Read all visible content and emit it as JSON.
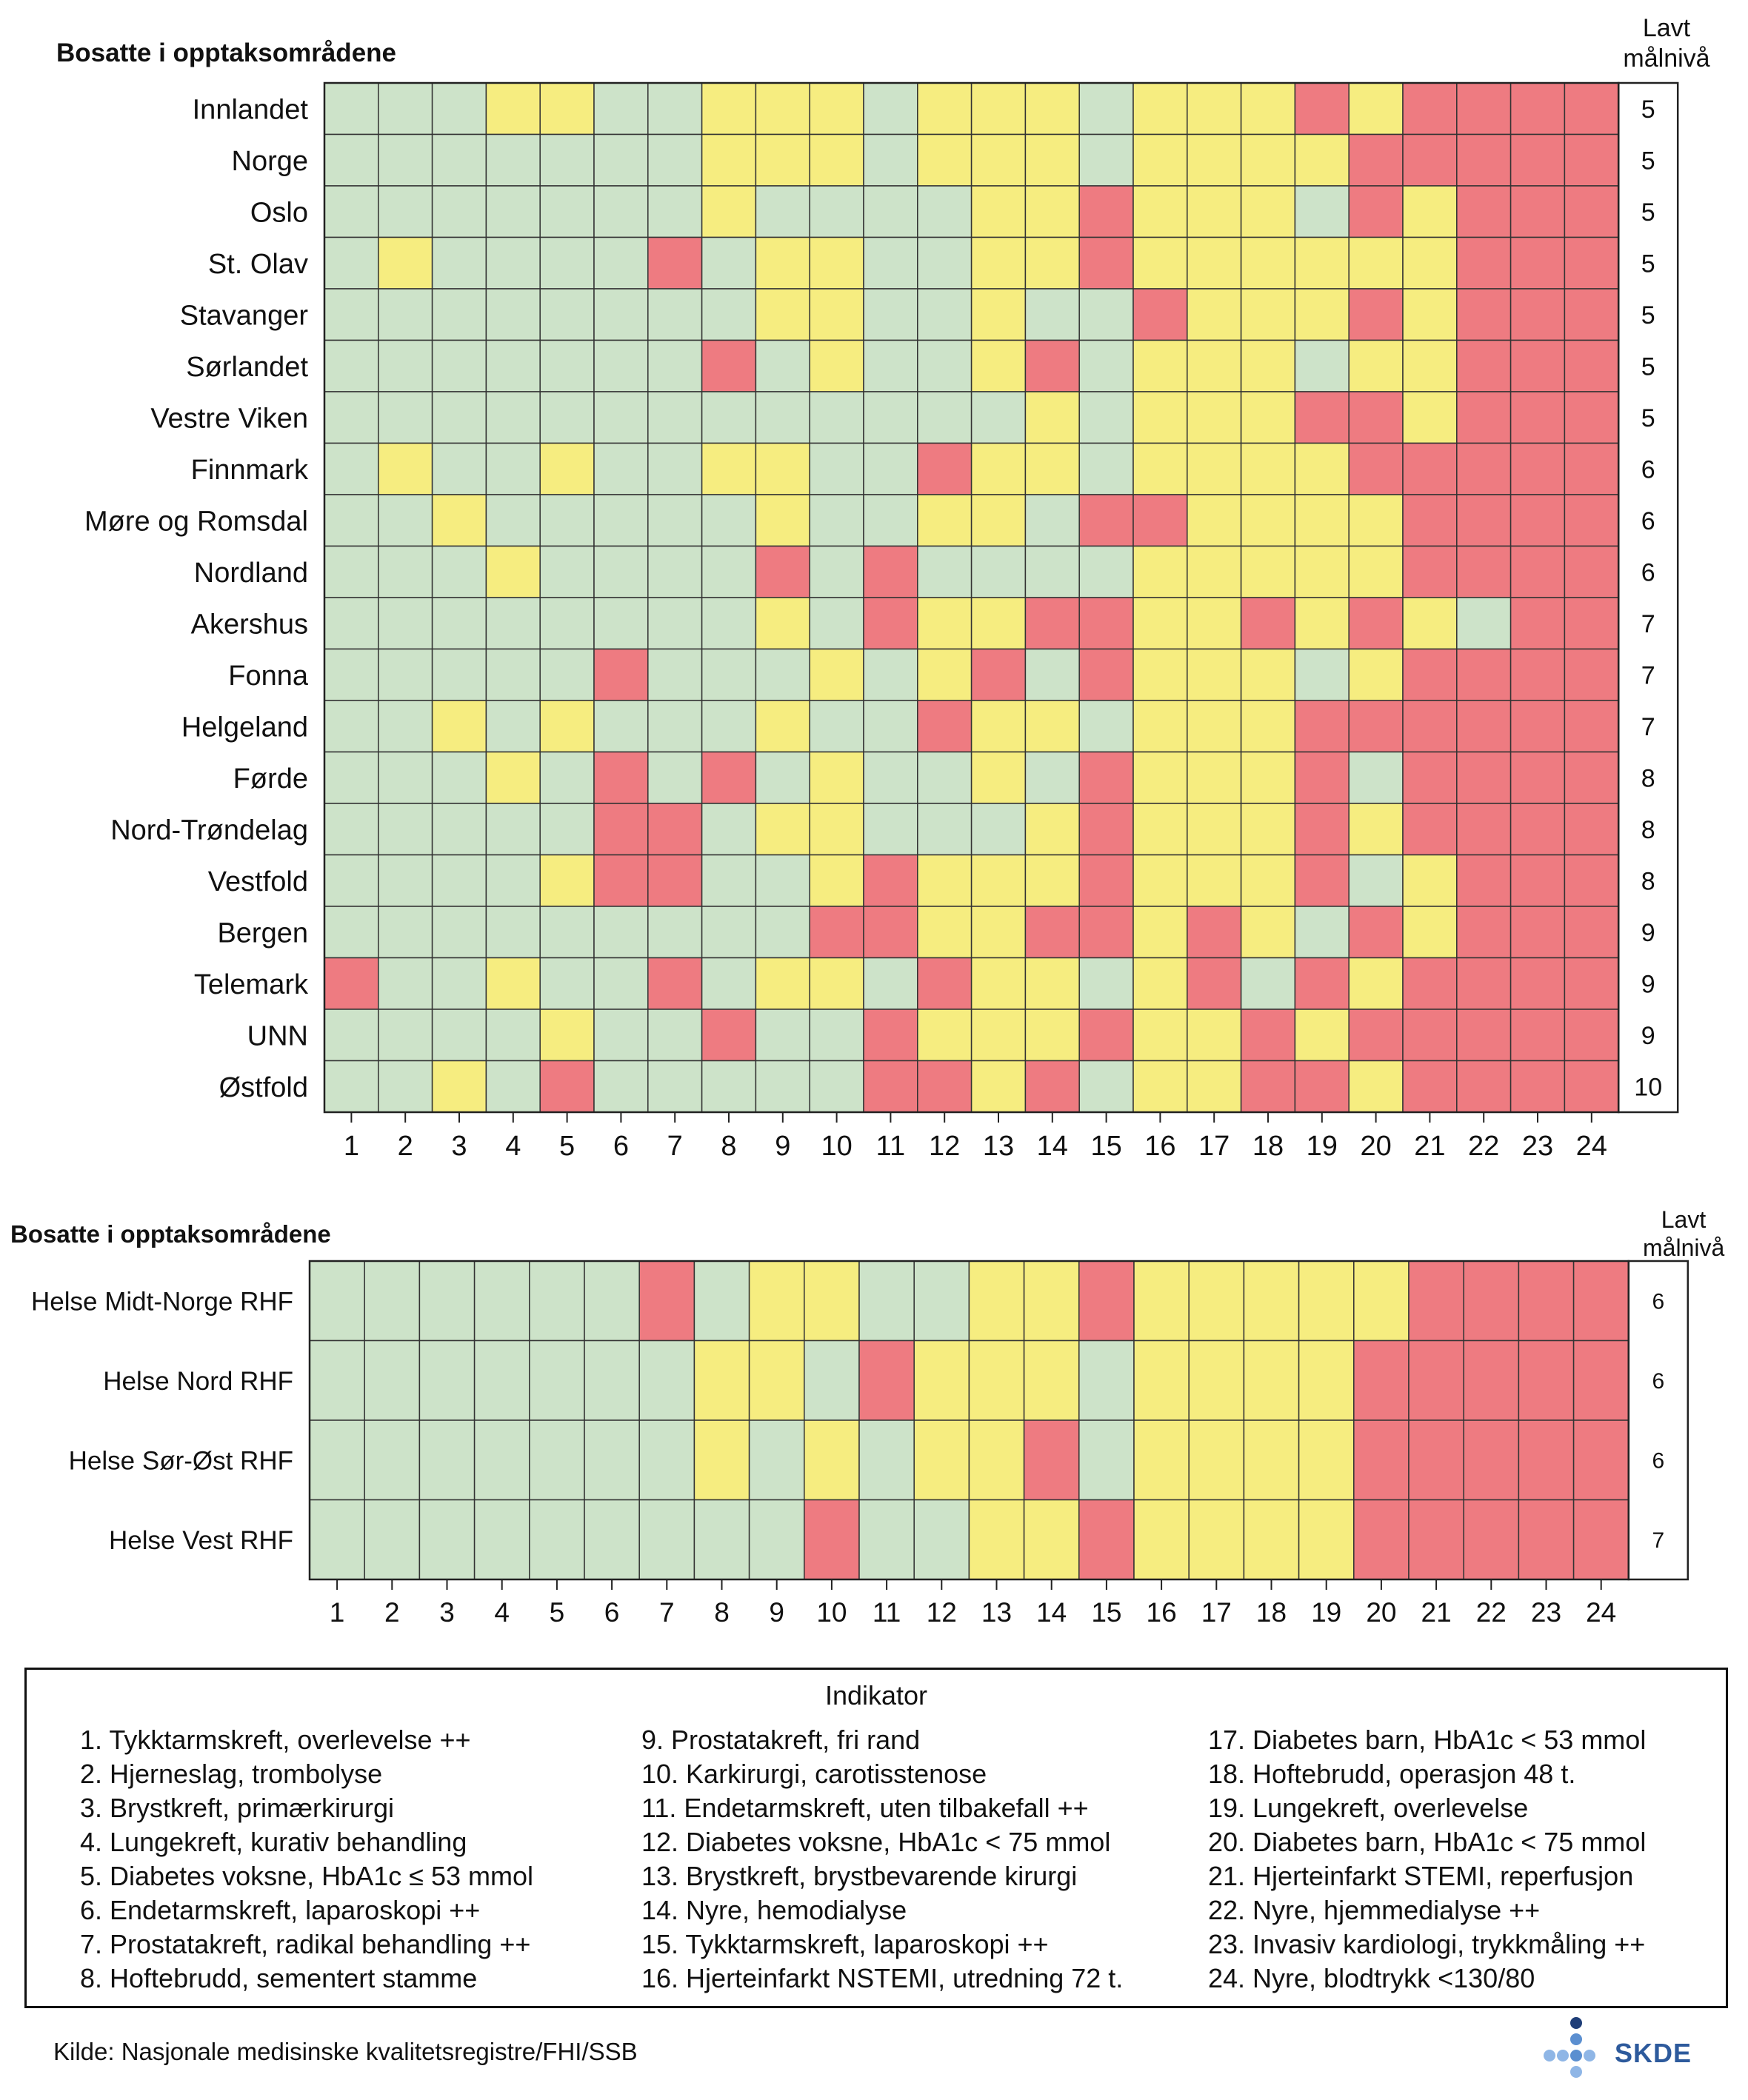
{
  "chart_data": [
    {
      "type": "heatmap",
      "title": "Bosatte i opptaksområdene",
      "right_header": [
        "Lavt",
        "målnivå"
      ],
      "columns": [
        1,
        2,
        3,
        4,
        5,
        6,
        7,
        8,
        9,
        10,
        11,
        12,
        13,
        14,
        15,
        16,
        17,
        18,
        19,
        20,
        21,
        22,
        23,
        24
      ],
      "legend_levels": {
        "G": "#cde3c9",
        "Y": "#f6ed80",
        "R": "#ee7b81"
      },
      "rows": [
        {
          "name": "Innlandet",
          "cells": "GGGYYGGYYYGYYYGYYYRYRRRR",
          "lavt": 5
        },
        {
          "name": "Norge",
          "cells": "GGGGGGGYYYGYYYGYYYYRRRRR",
          "lavt": 5
        },
        {
          "name": "Oslo",
          "cells": "GGGGGGGYGGGGYYRYYYGRYRRR",
          "lavt": 5
        },
        {
          "name": "St. Olav",
          "cells": "GYGGGGRGYYGGYYRYYYYYYRRR",
          "lavt": 5
        },
        {
          "name": "Stavanger",
          "cells": "GGGGGGGGYYGGYGGRYYYRYRRR",
          "lavt": 5
        },
        {
          "name": "Sørlandet",
          "cells": "GGGGGGGRGYGGYRGYYYGYYRRR",
          "lavt": 5
        },
        {
          "name": "Vestre Viken",
          "cells": "GGGGGGGGGGGGGYGYYYRRYRRR",
          "lavt": 5
        },
        {
          "name": "Finnmark",
          "cells": "GYGGYGGYYGGRYYGYYYYRRRRR",
          "lavt": 6
        },
        {
          "name": "Møre og Romsdal",
          "cells": "GGYGGGGGYGGYYGRRYYYYRRRR",
          "lavt": 6
        },
        {
          "name": "Nordland",
          "cells": "GGGYGGGGRGRGGGGYYYYYRRRR",
          "lavt": 6
        },
        {
          "name": "Akershus",
          "cells": "GGGGGGGGYGRYYRRYYRYRYGRR",
          "lavt": 7
        },
        {
          "name": "Fonna",
          "cells": "GGGGGRGGGYGYRGRYYYGYRRRR",
          "lavt": 7
        },
        {
          "name": "Helgeland",
          "cells": "GGYGYGGGYGGRYYGYYYRRRRRR",
          "lavt": 7
        },
        {
          "name": "Førde",
          "cells": "GGGYGRGRGYGGYGRYYYRGRRRR",
          "lavt": 8
        },
        {
          "name": "Nord-Trøndelag",
          "cells": "GGGGGRRGYYGGGYRYYYRYRRRR",
          "lavt": 8
        },
        {
          "name": "Vestfold",
          "cells": "GGGGYRRGGYRYYYRYYYRGYRRR",
          "lavt": 8
        },
        {
          "name": "Bergen",
          "cells": "GGGGGGGGGRRYYRRYRYGRYRRR",
          "lavt": 9
        },
        {
          "name": "Telemark",
          "cells": "RGGYGGRGYYGRYYGYRGRYRRRR",
          "lavt": 9
        },
        {
          "name": "UNN",
          "cells": "GGGGYGGRGGRYYYRYYRYRRRRR",
          "lavt": 9
        },
        {
          "name": "Østfold",
          "cells": "GGYGRGGGGGRRYRGYYRRYRRRR",
          "lavt": 10
        }
      ]
    },
    {
      "type": "heatmap",
      "title": "Bosatte i opptaksområdene",
      "right_header": [
        "Lavt",
        "målnivå"
      ],
      "columns": [
        1,
        2,
        3,
        4,
        5,
        6,
        7,
        8,
        9,
        10,
        11,
        12,
        13,
        14,
        15,
        16,
        17,
        18,
        19,
        20,
        21,
        22,
        23,
        24
      ],
      "rows": [
        {
          "name": "Helse Midt-Norge RHF",
          "cells": "GGGGGGRGYYGGYYRYYYYYRRRR",
          "lavt": 6
        },
        {
          "name": "Helse Nord RHF",
          "cells": "GGGGGGGYYGRYYYGYYYYRRRRR",
          "lavt": 6
        },
        {
          "name": "Helse Sør-Øst RHF",
          "cells": "GGGGGGGYGYGYYRGYYYYRRRRR",
          "lavt": 6
        },
        {
          "name": "Helse Vest RHF",
          "cells": "GGGGGGGGGRGGYYRYYYYRRRRR",
          "lavt": 7
        }
      ]
    }
  ],
  "legend": {
    "title": "Indikator",
    "items": [
      "1. Tykktarmskreft, overlevelse ++",
      "2. Hjerneslag, trombolyse",
      "3. Brystkreft, primærkirurgi",
      "4. Lungekreft, kurativ behandling",
      "5. Diabetes voksne, HbA1c ≤ 53 mmol",
      "6. Endetarmskreft, laparoskopi ++",
      "7. Prostatakreft, radikal behandling ++",
      "8. Hoftebrudd, sementert stamme",
      "9. Prostatakreft, fri rand",
      "10. Karkirurgi, carotisstenose",
      "11. Endetarmskreft, uten tilbakefall ++",
      "12. Diabetes voksne, HbA1c < 75 mmol",
      "13. Brystkreft, brystbevarende kirurgi",
      "14. Nyre, hemodialyse",
      "15. Tykktarmskreft, laparoskopi ++",
      "16. Hjerteinfarkt NSTEMI, utredning 72 t.",
      "17. Diabetes barn, HbA1c < 53 mmol",
      "18. Hoftebrudd, operasjon 48 t.",
      "19. Lungekreft, overlevelse",
      "20. Diabetes barn, HbA1c < 75 mmol",
      "21. Hjerteinfarkt STEMI, reperfusjon",
      "22. Nyre, hjemmedialyse ++",
      "23. Invasiv kardiologi, trykkmåling ++",
      "24. Nyre, blodtrykk <130/80"
    ]
  },
  "source": "Kilde: Nasjonale medisinske kvalitetsregistre/FHI/SSB",
  "logo_text": "SKDE",
  "logo_color": "#2d5a9c"
}
